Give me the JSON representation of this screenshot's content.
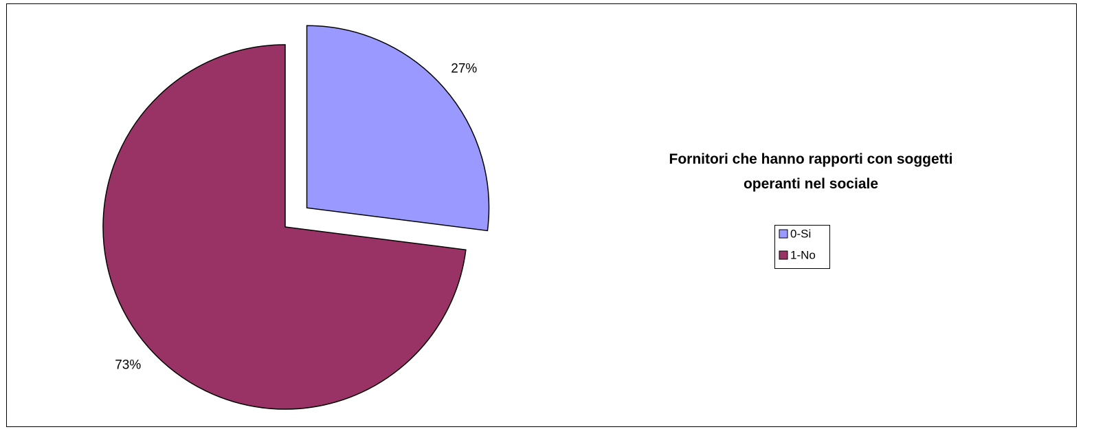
{
  "chart_data": {
    "type": "pie",
    "title": "Fornitori che hanno rapporti con soggetti operanti nel sociale",
    "categories": [
      "0-Si",
      "1-No"
    ],
    "values": [
      27,
      73
    ],
    "value_labels": [
      "27%",
      "73%"
    ],
    "colors": [
      "#9999ff",
      "#993366"
    ],
    "legend": "right"
  }
}
